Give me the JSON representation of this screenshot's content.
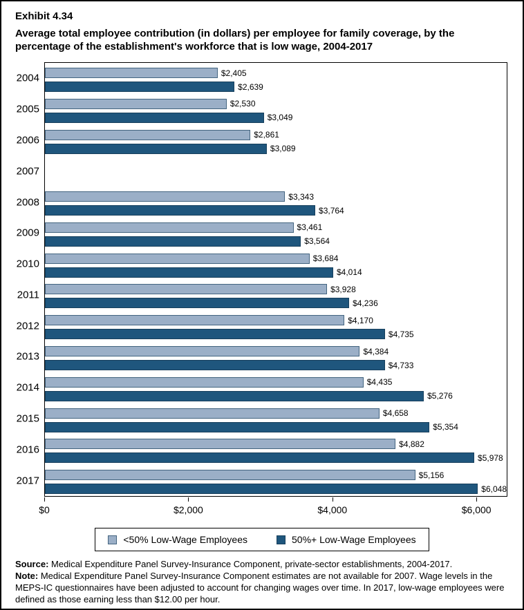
{
  "header": {
    "exhibit": "Exhibit 4.34",
    "title": "Average total employee contribution (in dollars) per employee for family coverage, by the percentage of the establishment's workforce that is low wage, 2004-2017"
  },
  "chart_data": {
    "type": "bar",
    "orientation": "horizontal",
    "title": "Average total employee contribution (in dollars) per employee for family coverage, by the percentage of the establishment's workforce that is low wage, 2004-2017",
    "categories": [
      "2004",
      "2005",
      "2006",
      "2007",
      "2008",
      "2009",
      "2010",
      "2011",
      "2012",
      "2013",
      "2014",
      "2015",
      "2016",
      "2017"
    ],
    "series": [
      {
        "name": "<50% Low-Wage Employees",
        "color": "#9BAFC7",
        "border_color": "#43647F",
        "values": [
          2405,
          2530,
          2861,
          null,
          3343,
          3461,
          3684,
          3928,
          4170,
          4384,
          4435,
          4658,
          4882,
          5156
        ]
      },
      {
        "name": "50%+ Low-Wage Employees",
        "color": "#1F567D",
        "border_color": "#173F5C",
        "values": [
          2639,
          3049,
          3089,
          null,
          3764,
          3564,
          4014,
          4236,
          4735,
          4733,
          5276,
          5354,
          5978,
          6048
        ]
      }
    ],
    "x_ticks": [
      {
        "value": 0,
        "label": "$0"
      },
      {
        "value": 2000,
        "label": "$2,000"
      },
      {
        "value": 4000,
        "label": "$4,000"
      },
      {
        "value": 6000,
        "label": "$6,000"
      }
    ],
    "xlim": [
      0,
      6430
    ],
    "grid": false,
    "legend_position": "bottom",
    "value_label_prefix": "$"
  },
  "footer": {
    "source_label": "Source:",
    "source_text": " Medical Expenditure Panel Survey-Insurance Component, private-sector establishments, 2004-2017.",
    "note_label": "Note:",
    "note_text": " Medical Expenditure Panel Survey-Insurance Component estimates are not available for 2007. Wage levels in the MEPS-IC questionnaires have been adjusted to account for changing wages over time. In 2017, low-wage employees were defined as those earning less than $12.00 per hour."
  }
}
